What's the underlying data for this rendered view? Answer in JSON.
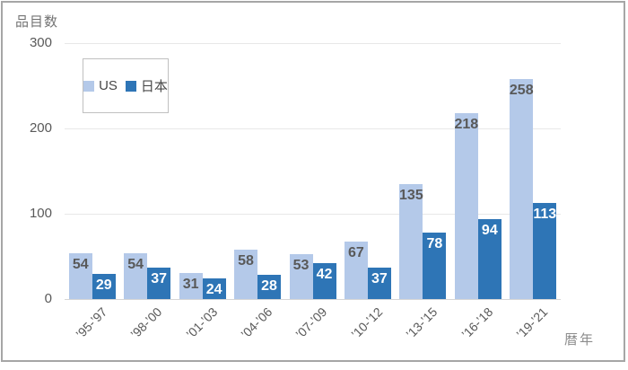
{
  "chart": {
    "y_axis_title": "品目数",
    "x_axis_title": "暦年"
  },
  "chart_data": {
    "type": "bar",
    "title": "",
    "xlabel": "暦年",
    "ylabel": "品目数",
    "categories": [
      "’95-’97",
      "’98-’00",
      "’01-’03",
      "’04-’06",
      "’07-’09",
      "’10-’12",
      "’13-’15",
      "’16-’18",
      "’19-’21"
    ],
    "series": [
      {
        "name": "US",
        "color": "#b4c9e9",
        "label_color": "#595959",
        "label_weight": "600",
        "values": [
          54,
          54,
          31,
          58,
          53,
          67,
          135,
          218,
          258
        ]
      },
      {
        "name": "日本",
        "color": "#2e75b6",
        "label_color": "#ffffff",
        "label_weight": "700",
        "values": [
          29,
          37,
          24,
          28,
          42,
          37,
          78,
          94,
          113
        ]
      }
    ],
    "ylim": [
      0,
      300
    ],
    "yticks": [
      0,
      100,
      200,
      300
    ],
    "grid": true,
    "legend_position": "inside-top-left",
    "colors": {
      "gridline": "#e8e8e8",
      "axis_line": "#d6d6d6",
      "frame_border": "#a6a6a6",
      "tick_text": "#595959"
    }
  }
}
